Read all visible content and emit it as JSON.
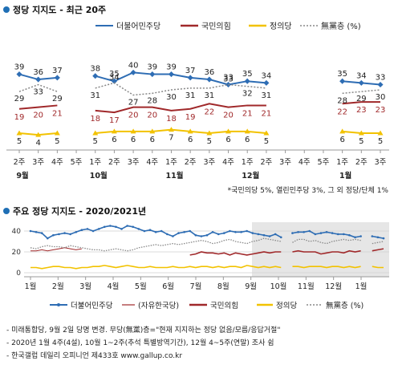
{
  "header": {
    "bullet_color": "#1f6fb5"
  },
  "chart_data": [
    {
      "type": "line",
      "title": "정당 지지도 - 최근 20주",
      "legend_placement": "top-right",
      "categories": [
        "2주",
        "3주",
        "4주",
        "5주",
        "1주",
        "2주",
        "3주",
        "4주",
        "1주",
        "2주",
        "3주",
        "4주",
        "1주",
        "2주",
        "3주",
        "4주",
        "5주",
        "1주",
        "2주",
        "3주"
      ],
      "month_labels": [
        {
          "text": "9월",
          "index": 0
        },
        {
          "text": "10월",
          "index": 4
        },
        {
          "text": "11월",
          "index": 8
        },
        {
          "text": "12월",
          "index": 12
        },
        {
          "text": "1월",
          "index": 17
        }
      ],
      "gap_after_index": 4,
      "series": [
        {
          "name": "더불어민주당",
          "color": "#2e6db4",
          "style": "solid-diamond",
          "values": [
            39,
            36,
            37,
            null,
            38,
            35,
            40,
            39,
            39,
            37,
            36,
            33,
            35,
            34,
            null,
            null,
            null,
            35,
            34,
            33
          ]
        },
        {
          "name": "국민의힘",
          "color": "#a0282a",
          "style": "solid",
          "values": [
            19,
            20,
            21,
            null,
            18,
            17,
            20,
            20,
            18,
            19,
            22,
            20,
            21,
            21,
            null,
            null,
            null,
            22,
            23,
            23
          ]
        },
        {
          "name": "정의당",
          "color": "#f2c200",
          "style": "solid-triangle",
          "values": [
            5,
            4,
            5,
            null,
            5,
            6,
            6,
            6,
            7,
            6,
            5,
            6,
            6,
            5,
            null,
            null,
            null,
            6,
            5,
            5
          ]
        },
        {
          "name": "無黨층 (%)",
          "color": "#888888",
          "style": "dotted",
          "values": [
            29,
            33,
            29,
            null,
            31,
            34,
            27,
            28,
            30,
            31,
            31,
            33,
            32,
            31,
            null,
            null,
            null,
            28,
            29,
            30
          ]
        }
      ],
      "ylim": [
        0,
        45
      ],
      "footnote": "*국민의당 5%, 열린민주당 3%, 그 외 정당/단체 1%"
    },
    {
      "type": "line",
      "title": "주요 정당 지지도 - 2020/2021년",
      "legend_placement": "bottom",
      "x_month_labels": [
        "1월",
        "2월",
        "3월",
        "4월",
        "5월",
        "6월",
        "7월",
        "8월",
        "9월",
        "10월",
        "11월",
        "12월",
        "1월"
      ],
      "y_ticks": [
        0,
        20,
        40
      ],
      "ylim": [
        0,
        45
      ],
      "shaded_from_month": "9월",
      "series": [
        {
          "name": "더불어민주당",
          "color": "#2e6db4",
          "style": "solid-diamond",
          "values": [
            40,
            39,
            38,
            33,
            36,
            37,
            38,
            37,
            39,
            41,
            42,
            40,
            42,
            44,
            45,
            44,
            42,
            45,
            44,
            42,
            40,
            41,
            39,
            40,
            37,
            35,
            38,
            39,
            40,
            36,
            35,
            36,
            39,
            37,
            38,
            40,
            39,
            39,
            40,
            38,
            37,
            36,
            35,
            37,
            34,
            null,
            38,
            39,
            39,
            40,
            37,
            38,
            39,
            38,
            37,
            37,
            36,
            34,
            35,
            null,
            35,
            34,
            33
          ]
        },
        {
          "name": "(자유한국당)",
          "color": "#a0282a",
          "style": "thin",
          "values": [
            21,
            21,
            22,
            21,
            22,
            23,
            24,
            23,
            22,
            23,
            null,
            null,
            null,
            null,
            null,
            null,
            null,
            null,
            null,
            null,
            null,
            null,
            null,
            null,
            null,
            null,
            null,
            null,
            null,
            null,
            null,
            null,
            null,
            null,
            null,
            null,
            null,
            null,
            null,
            null,
            null,
            null,
            null,
            null,
            null,
            null,
            null,
            null,
            null,
            null,
            null,
            null,
            null,
            null,
            null,
            null,
            null,
            null,
            null,
            null,
            null,
            null,
            null
          ]
        },
        {
          "name": "국민의힘",
          "color": "#a0282a",
          "style": "solid",
          "values": [
            null,
            null,
            null,
            null,
            null,
            null,
            null,
            null,
            null,
            null,
            null,
            null,
            null,
            null,
            null,
            null,
            null,
            null,
            null,
            null,
            null,
            null,
            null,
            null,
            null,
            null,
            null,
            null,
            17,
            18,
            20,
            19,
            19,
            18,
            19,
            17,
            19,
            18,
            17,
            18,
            19,
            20,
            19,
            20,
            20,
            null,
            20,
            21,
            20,
            20,
            20,
            18,
            19,
            20,
            20,
            19,
            21,
            20,
            21,
            null,
            21,
            22,
            23
          ]
        },
        {
          "name": "정의당",
          "color": "#f2c200",
          "style": "solid-triangle",
          "values": [
            5,
            5,
            4,
            5,
            6,
            6,
            5,
            5,
            4,
            5,
            5,
            6,
            6,
            7,
            6,
            5,
            6,
            7,
            6,
            5,
            5,
            6,
            5,
            5,
            5,
            6,
            5,
            5,
            6,
            5,
            6,
            6,
            5,
            6,
            5,
            6,
            6,
            5,
            7,
            6,
            5,
            6,
            5,
            6,
            5,
            null,
            6,
            6,
            5,
            6,
            6,
            6,
            5,
            6,
            6,
            5,
            6,
            5,
            6,
            null,
            6,
            5,
            5
          ]
        },
        {
          "name": "無黨층 (%)",
          "color": "#888888",
          "style": "dotted",
          "values": [
            24,
            23,
            25,
            26,
            25,
            25,
            24,
            26,
            25,
            24,
            23,
            22,
            22,
            21,
            22,
            23,
            22,
            21,
            22,
            24,
            25,
            26,
            27,
            26,
            27,
            28,
            27,
            28,
            29,
            30,
            31,
            30,
            28,
            29,
            31,
            32,
            30,
            29,
            28,
            30,
            31,
            33,
            32,
            31,
            30,
            null,
            29,
            32,
            32,
            30,
            31,
            29,
            28,
            30,
            31,
            32,
            31,
            32,
            31,
            null,
            28,
            29,
            30
          ]
        }
      ],
      "legend": [
        "더불어민주당",
        "(자유한국당)",
        "국민의힘",
        "정의당",
        "無黨층 (%)"
      ]
    }
  ],
  "footer": {
    "lines": [
      "- 미래통합당, 9월 2일 당명 변경. 무당(無黨)층=\"현재 지지하는 정당 없음/모름/응답거절\"",
      "- 2020년 1월 4주(4설), 10월 1~2주(추석 특별방역기간), 12월 4~5주(연말) 조사 쉼",
      "- 한국갤럽 데일리 오피니언 제433호 www.gallup.co.kr"
    ]
  }
}
